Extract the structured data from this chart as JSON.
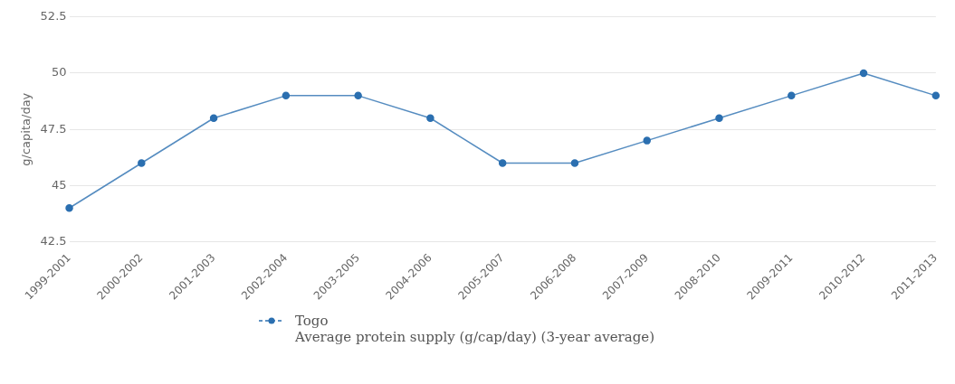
{
  "chart_data": {
    "type": "line",
    "ylabel": "g/capita/day",
    "categories": [
      "1999-2001",
      "2000-2002",
      "2001-2003",
      "2002-2004",
      "2003-2005",
      "2004-2006",
      "2005-2007",
      "2006-2008",
      "2007-2009",
      "2008-2010",
      "2009-2011",
      "2010-2012",
      "2011-2013"
    ],
    "series": [
      {
        "name": "Togo",
        "color": "#2b6fb0",
        "values": [
          44,
          46,
          48,
          49,
          49,
          48,
          46,
          46,
          47,
          48,
          49,
          50,
          49
        ]
      }
    ],
    "ylim": [
      42.5,
      52.5
    ],
    "yticks": [
      42.5,
      45,
      47.5,
      50,
      52.5
    ],
    "grid": "y",
    "legend": "bottom",
    "marker": "circle",
    "line_style": "solid",
    "annotations": [
      "Average protein supply (g/cap/day) (3-year average)"
    ]
  }
}
